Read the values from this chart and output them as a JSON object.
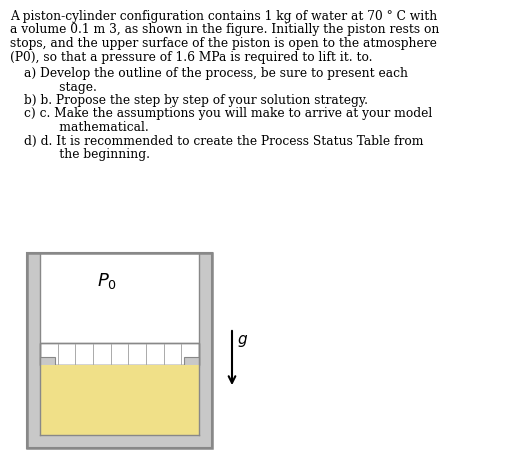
{
  "text_lines": [
    "A piston-cylinder configuration contains 1 kg of water at 70 ° C with",
    "a volume 0.1 m 3, as shown in the figure. Initially the piston rests on",
    "stops, and the upper surface of the piston is open to the atmosphere",
    "(P0), so that a pressure of 1.6 MPa is required to lift it. to."
  ],
  "list_items": [
    [
      "a) Develop the outline of the process, be sure to present each",
      "      stage."
    ],
    [
      "b) b. Propose the step by step of your solution strategy."
    ],
    [
      "c) c. Make the assumptions you will make to arrive at your model",
      "      mathematical."
    ],
    [
      "d) d. It is recommended to create the Process Status Table from",
      "      the beginning."
    ]
  ],
  "bg_color": "#ffffff",
  "cylinder_gray": "#c8c8c8",
  "cylinder_dark": "#888888",
  "piston_fill": "#e0e0e0",
  "piston_line": "#777777",
  "water_color": "#f0e088",
  "text_color": "#000000",
  "g_arrow_color": "#000000",
  "fig_w": 5.24,
  "fig_h": 4.62,
  "dpi": 100
}
